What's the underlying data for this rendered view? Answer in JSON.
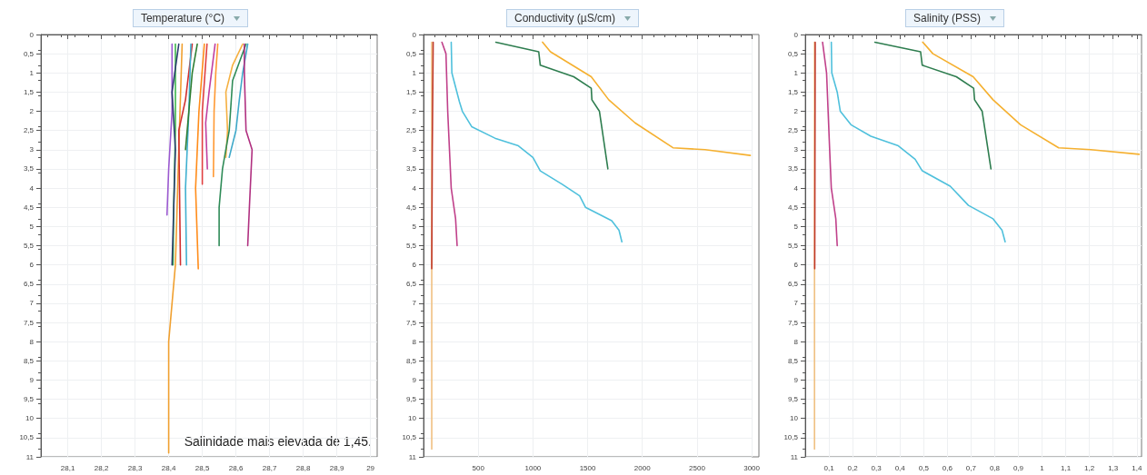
{
  "chart_data": [
    {
      "type": "line",
      "title": "Temperature (°C)",
      "marker": "none",
      "grid": true,
      "xlim": [
        28.02,
        29.02
      ],
      "xticks": [
        {
          "value": 28.1,
          "label": "28,1"
        },
        {
          "value": 28.2,
          "label": "28,2"
        },
        {
          "value": 28.3,
          "label": "28,3"
        },
        {
          "value": 28.4,
          "label": "28,4"
        },
        {
          "value": 28.5,
          "label": "28,5"
        },
        {
          "value": 28.6,
          "label": "28,6"
        },
        {
          "value": 28.7,
          "label": "28,7"
        },
        {
          "value": 28.8,
          "label": "28,8"
        },
        {
          "value": 28.9,
          "label": "28,9"
        },
        29
      ],
      "ylim": [
        11,
        0
      ],
      "yticks": [
        0,
        {
          "value": 0.5,
          "label": "0,5"
        },
        1,
        {
          "value": 1.5,
          "label": "1,5"
        },
        2,
        {
          "value": 2.5,
          "label": "2,5"
        },
        3,
        {
          "value": 3.5,
          "label": "3,5"
        },
        4,
        {
          "value": 4.5,
          "label": "4,5"
        },
        5,
        {
          "value": 5.5,
          "label": "5,5"
        },
        6,
        {
          "value": 6.5,
          "label": "6,5"
        },
        7,
        {
          "value": 7.5,
          "label": "7,5"
        },
        8,
        {
          "value": 8.5,
          "label": "8,5"
        },
        9,
        {
          "value": 9.5,
          "label": "9,5"
        },
        10,
        {
          "value": 10.5,
          "label": "10,5"
        },
        11
      ],
      "annotations": [
        "Salinidade mais elevada de 1,45."
      ],
      "series": [
        {
          "color": "#9b59d0",
          "x": [
            28.41,
            28.41,
            28.4,
            28.395
          ],
          "values": [
            0.25,
            2,
            3.5,
            4.7
          ]
        },
        {
          "color": "#3cb44b",
          "x": [
            28.42,
            28.42,
            28.415,
            28.413
          ],
          "values": [
            0.25,
            2.5,
            4.5,
            6
          ]
        },
        {
          "color": "#2c3e70",
          "x": [
            28.43,
            28.41,
            28.42,
            28.41
          ],
          "values": [
            0.25,
            1.5,
            3,
            6
          ]
        },
        {
          "color": "#f0a030",
          "x": [
            28.44,
            28.43,
            28.42,
            28.4,
            28.4
          ],
          "values": [
            0.25,
            3,
            6,
            8,
            10.9
          ]
        },
        {
          "color": "#d03030",
          "x": [
            28.47,
            28.45,
            28.43,
            28.435
          ],
          "values": [
            0.25,
            1.7,
            2.5,
            6
          ]
        },
        {
          "color": "#40b0d0",
          "x": [
            28.466,
            28.46,
            28.45,
            28.453
          ],
          "values": [
            0.25,
            2,
            4,
            6
          ]
        },
        {
          "color": "#2e7d32",
          "x": [
            28.485,
            28.47,
            28.46,
            28.45
          ],
          "values": [
            0.25,
            1,
            2,
            3
          ]
        },
        {
          "color": "#ff8c1a",
          "x": [
            28.506,
            28.49,
            28.48,
            28.488
          ],
          "values": [
            0.25,
            2,
            4,
            6.1
          ]
        },
        {
          "color": "#e04040",
          "x": [
            28.514,
            28.5,
            28.5,
            28.5
          ],
          "values": [
            0.25,
            2,
            3,
            3.9
          ]
        },
        {
          "color": "#c040a0",
          "x": [
            28.538,
            28.52,
            28.51,
            28.515
          ],
          "values": [
            0.25,
            1.5,
            2.3,
            3.5
          ]
        },
        {
          "color": "#ff9933",
          "x": [
            28.546,
            28.54,
            28.535,
            28.533
          ],
          "values": [
            0.25,
            1,
            2,
            3.7
          ]
        },
        {
          "color": "#f5b041",
          "x": [
            28.62,
            28.59,
            28.57,
            28.575,
            28.57
          ],
          "values": [
            0.25,
            0.8,
            1.5,
            2.5,
            3.2
          ]
        },
        {
          "color": "#2e8b57",
          "x": [
            28.63,
            28.59,
            28.58,
            28.56,
            28.55,
            28.55
          ],
          "values": [
            0.25,
            1.2,
            2.5,
            3.5,
            4.5,
            5.5
          ]
        },
        {
          "color": "#3fa9c9",
          "x": [
            28.635,
            28.62,
            28.61,
            28.6,
            28.58
          ],
          "values": [
            0.25,
            1,
            1.7,
            2.5,
            3.2
          ]
        },
        {
          "color": "#b03080",
          "x": [
            28.625,
            28.625,
            28.63,
            28.648,
            28.64,
            28.635
          ],
          "values": [
            0.25,
            1,
            2.5,
            3,
            4.5,
            5.5
          ]
        }
      ]
    },
    {
      "type": "line",
      "title": "Conductivity (µS/cm)",
      "marker": "none",
      "grid": true,
      "xlim": [
        0,
        3000
      ],
      "xticks": [
        500,
        1000,
        1500,
        2000,
        2500,
        3000
      ],
      "ylim": [
        11,
        0
      ],
      "yticks": [
        0,
        {
          "value": 0.5,
          "label": "0,5"
        },
        1,
        {
          "value": 1.5,
          "label": "1,5"
        },
        2,
        {
          "value": 2.5,
          "label": "2,5"
        },
        3,
        {
          "value": 3.5,
          "label": "3,5"
        },
        4,
        {
          "value": 4.5,
          "label": "4,5"
        },
        5,
        {
          "value": 5.5,
          "label": "5,5"
        },
        6,
        {
          "value": 6.5,
          "label": "6,5"
        },
        7,
        {
          "value": 7.5,
          "label": "7,5"
        },
        8,
        {
          "value": 8.5,
          "label": "8,5"
        },
        9,
        {
          "value": 9.5,
          "label": "9,5"
        },
        10,
        {
          "value": 10.5,
          "label": "10,5"
        },
        11
      ],
      "series": [
        {
          "color": "#f0c080",
          "x": [
            75,
            75
          ],
          "values": [
            0.2,
            10.8
          ]
        },
        {
          "color": "#c0392b",
          "x": [
            88,
            80,
            75
          ],
          "values": [
            0.2,
            3,
            6.1
          ]
        },
        {
          "color": "#c0408a",
          "x": [
            168,
            205,
            221,
            253,
            293,
            307
          ],
          "values": [
            0.2,
            0.5,
            2,
            4,
            4.8,
            5.5
          ]
        },
        {
          "color": "#4fc0dc",
          "x": [
            253,
            259,
            328,
            355,
            440,
            653,
            867,
            1000,
            1067,
            1267,
            1427,
            1480,
            1720,
            1787,
            1813
          ],
          "values": [
            0.2,
            1,
            1.75,
            2,
            2.4,
            2.7,
            2.9,
            3.2,
            3.55,
            3.9,
            4.2,
            4.5,
            4.85,
            5.1,
            5.4
          ]
        },
        {
          "color": "#2e7d4f",
          "x": [
            661,
            1053,
            1067,
            1373,
            1533,
            1539,
            1608,
            1685
          ],
          "values": [
            0.2,
            0.45,
            0.8,
            1.1,
            1.4,
            1.7,
            2,
            3.5
          ]
        },
        {
          "color": "#f5b030",
          "x": [
            1088,
            1160,
            1533,
            1693,
            1933,
            2280,
            2573,
            2987
          ],
          "values": [
            0.2,
            0.45,
            1.1,
            1.7,
            2.3,
            2.95,
            3,
            3.15
          ]
        }
      ]
    },
    {
      "type": "line",
      "title": "Salinity (PSS)",
      "marker": "none",
      "grid": true,
      "xlim": [
        0,
        1.42
      ],
      "xticks": [
        {
          "value": 0.1,
          "label": "0,1"
        },
        {
          "value": 0.2,
          "label": "0,2"
        },
        {
          "value": 0.3,
          "label": "0,3"
        },
        {
          "value": 0.4,
          "label": "0,4"
        },
        {
          "value": 0.5,
          "label": "0,5"
        },
        {
          "value": 0.6,
          "label": "0,6"
        },
        {
          "value": 0.7,
          "label": "0,7"
        },
        {
          "value": 0.8,
          "label": "0,8"
        },
        {
          "value": 0.9,
          "label": "0,9"
        },
        1,
        {
          "value": 1.1,
          "label": "1,1"
        },
        {
          "value": 1.2,
          "label": "1,2"
        },
        {
          "value": 1.3,
          "label": "1,3"
        },
        {
          "value": 1.4,
          "label": "1,4"
        }
      ],
      "ylim": [
        11,
        0
      ],
      "yticks": [
        0,
        {
          "value": 0.5,
          "label": "0,5"
        },
        1,
        {
          "value": 1.5,
          "label": "1,5"
        },
        2,
        {
          "value": 2.5,
          "label": "2,5"
        },
        3,
        {
          "value": 3.5,
          "label": "3,5"
        },
        4,
        {
          "value": 4.5,
          "label": "4,5"
        },
        5,
        {
          "value": 5.5,
          "label": "5,5"
        },
        6,
        {
          "value": 6.5,
          "label": "6,5"
        },
        7,
        {
          "value": 7.5,
          "label": "7,5"
        },
        8,
        {
          "value": 8.5,
          "label": "8,5"
        },
        9,
        {
          "value": 9.5,
          "label": "9,5"
        },
        10,
        {
          "value": 10.5,
          "label": "10,5"
        },
        11
      ],
      "series": [
        {
          "color": "#f0c080",
          "x": [
            0.039,
            0.039
          ],
          "values": [
            0.2,
            10.8
          ]
        },
        {
          "color": "#c0392b",
          "x": [
            0.042,
            0.041,
            0.04
          ],
          "values": [
            0.2,
            3,
            6.1
          ]
        },
        {
          "color": "#c0408a",
          "x": [
            0.073,
            0.09,
            0.103,
            0.11,
            0.129,
            0.135
          ],
          "values": [
            0.2,
            1,
            3,
            4,
            4.8,
            5.5
          ]
        },
        {
          "color": "#4fc0dc",
          "x": [
            0.11,
            0.112,
            0.135,
            0.148,
            0.193,
            0.277,
            0.393,
            0.464,
            0.494,
            0.612,
            0.689,
            0.793,
            0.831,
            0.844
          ],
          "values": [
            0.2,
            1,
            1.5,
            2,
            2.35,
            2.65,
            2.9,
            3.25,
            3.55,
            3.95,
            4.45,
            4.8,
            5.1,
            5.4
          ]
        },
        {
          "color": "#2e7d4f",
          "x": [
            0.294,
            0.487,
            0.494,
            0.638,
            0.711,
            0.715,
            0.747,
            0.784
          ],
          "values": [
            0.2,
            0.45,
            0.8,
            1.1,
            1.4,
            1.7,
            2,
            3.5
          ]
        },
        {
          "color": "#f5b030",
          "x": [
            0.496,
            0.539,
            0.709,
            0.793,
            0.909,
            1.07,
            1.205,
            1.41
          ],
          "values": [
            0.2,
            0.5,
            1.1,
            1.7,
            2.35,
            2.95,
            3,
            3.12
          ]
        }
      ]
    }
  ]
}
